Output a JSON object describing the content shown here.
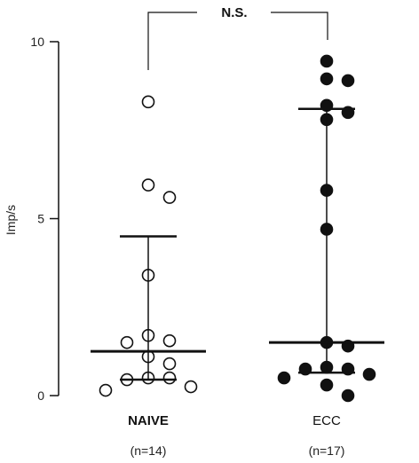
{
  "chart_data": {
    "type": "scatter",
    "ylabel": "Imp/s",
    "ylim": [
      0,
      10
    ],
    "yticks": [
      0,
      5,
      10
    ],
    "categories": [
      "NAIVE",
      "ECC"
    ],
    "category_counts": [
      "(n=14)",
      "(n=17)"
    ],
    "significance": "N.S.",
    "series": [
      {
        "category": "NAIVE",
        "marker": "open-circle",
        "values": [
          8.3,
          5.95,
          5.6,
          3.4,
          1.7,
          1.55,
          1.5,
          1.1,
          0.9,
          0.5,
          0.5,
          0.45,
          0.25,
          0.15
        ],
        "median": 1.25,
        "q1": 0.45,
        "q3": 4.5
      },
      {
        "category": "ECC",
        "marker": "filled-circle",
        "values": [
          9.45,
          8.95,
          8.9,
          8.2,
          8.0,
          7.8,
          5.8,
          4.7,
          1.5,
          1.4,
          0.8,
          0.75,
          0.75,
          0.6,
          0.5,
          0.3,
          0.0
        ],
        "median": 1.5,
        "q1": 0.65,
        "q3": 8.1
      }
    ]
  }
}
